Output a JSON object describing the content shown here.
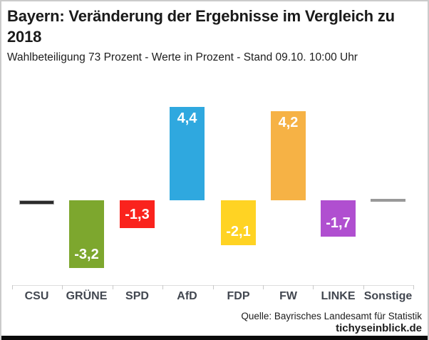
{
  "header": {
    "title": "Bayern: Veränderung der Ergebnisse im Vergleich zu 2018",
    "subtitle": "Wahlbeteiligung 73 Prozent - Werte in Prozent - Stand 09.10. 10:00 Uhr"
  },
  "footer": {
    "source": "Quelle: Bayrisches Landesamt für Statistik",
    "site": "tichyseinblick.de"
  },
  "chart_data": {
    "type": "bar",
    "title": "Bayern: Veränderung der Ergebnisse im Vergleich zu 2018",
    "subtitle": "Wahlbeteiligung 73 Prozent - Werte in Prozent - Stand 09.10. 10:00 Uhr",
    "xlabel": "",
    "ylabel": "",
    "categories": [
      "CSU",
      "GRÜNE",
      "SPD",
      "AfD",
      "FDP",
      "FW",
      "LINKE",
      "Sonstige"
    ],
    "values": [
      -0.2,
      -3.2,
      -1.3,
      4.4,
      -2.1,
      4.2,
      -1.7,
      0.0
    ],
    "value_labels": [
      "",
      "-3,2",
      "-1,3",
      "4,4",
      "-2,1",
      "4,2",
      "-1,7",
      ""
    ],
    "bar_colors": [
      "#2b2b2b",
      "#7da72e",
      "#fa231d",
      "#2fa8df",
      "#ffd323",
      "#f6b245",
      "#b04fd0",
      "#999999"
    ],
    "bar_strokes": [
      "#ababab",
      null,
      null,
      null,
      null,
      null,
      null,
      null
    ],
    "label_color": "#ffffff",
    "baseline": 0,
    "ylim": [
      -3.5,
      5
    ],
    "grid": false,
    "legend": false
  }
}
